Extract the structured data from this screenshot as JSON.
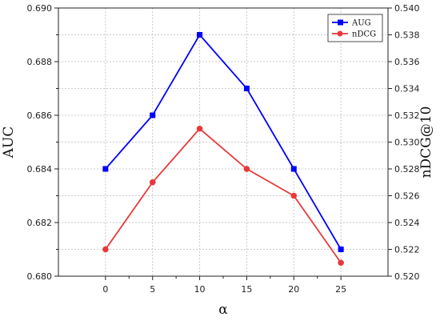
{
  "chart_data": {
    "type": "line",
    "title": "",
    "xlabel": "α",
    "ylabel": "AUC",
    "ylabel_right": "nDCG@10",
    "x": [
      0,
      5,
      10,
      15,
      20,
      25
    ],
    "x_tick_labels": [
      "0",
      "5",
      "10",
      "15",
      "20",
      "25"
    ],
    "ylim": [
      0.68,
      0.69
    ],
    "y_ticks": [
      "0.680",
      "0.682",
      "0.684",
      "0.686",
      "0.688",
      "0.690"
    ],
    "ylim_right": [
      0.52,
      0.54
    ],
    "y_ticks_right": [
      "0.520",
      "0.522",
      "0.524",
      "0.526",
      "0.528",
      "0.530",
      "0.532",
      "0.534",
      "0.536",
      "0.538",
      "0.540"
    ],
    "series": [
      {
        "name": "AUG",
        "axis": "left",
        "color": "#0000ff",
        "marker": "square",
        "values": [
          0.684,
          0.686,
          0.689,
          0.687,
          0.684,
          0.681
        ]
      },
      {
        "name": "nDCG",
        "axis": "right",
        "color": "#e8383a",
        "marker": "circle",
        "values": [
          0.522,
          0.527,
          0.531,
          0.528,
          0.526,
          0.521
        ]
      }
    ],
    "grid": true,
    "legend_position": "top-right"
  }
}
